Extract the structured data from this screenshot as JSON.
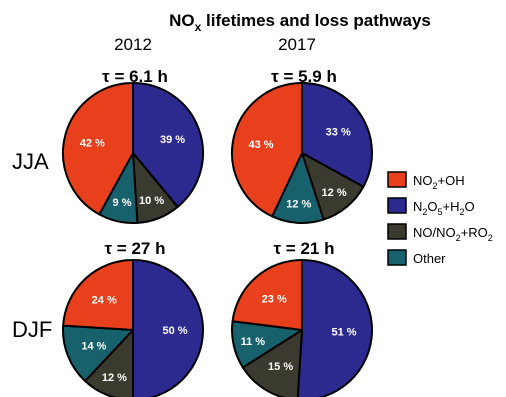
{
  "chart_data": {
    "type": "pie",
    "title": "NOx lifetimes and loss pathways",
    "title_main": "NO",
    "title_sub": "x",
    "title_rest": " lifetimes and loss pathways",
    "years": [
      "2012",
      "2017"
    ],
    "seasons": [
      "JJA",
      "DJF"
    ],
    "categories": [
      "NO2+OH",
      "N2O5+H2O",
      "NO/NO2+RO2",
      "Other"
    ],
    "colors": {
      "NO2+OH": "#e8401c",
      "N2O5+H2O": "#2c2a8f",
      "NO/NO2+RO2": "#3a3a2e",
      "Other": "#17616c"
    },
    "legend": {
      "placement": "right",
      "entries": [
        {
          "key": "NO2+OH",
          "parts": [
            [
              "NO",
              ""
            ],
            [
              "2",
              "sub"
            ],
            [
              "+OH",
              ""
            ]
          ]
        },
        {
          "key": "N2O5+H2O",
          "parts": [
            [
              "N",
              ""
            ],
            [
              "2",
              "sub"
            ],
            [
              "O",
              ""
            ],
            [
              "5",
              "sub"
            ],
            [
              "+H",
              ""
            ],
            [
              "2",
              "sub"
            ],
            [
              "O",
              ""
            ]
          ]
        },
        {
          "key": "NO/NO2+RO2",
          "parts": [
            [
              "NO/NO",
              ""
            ],
            [
              "2",
              "sub"
            ],
            [
              "+RO",
              ""
            ],
            [
              "2",
              "sub"
            ]
          ]
        },
        {
          "key": "Other",
          "parts": [
            [
              "Other",
              ""
            ]
          ]
        }
      ]
    },
    "pies": [
      {
        "season": "JJA",
        "year": "2012",
        "tau": "τ = 6.1 h",
        "slices": [
          {
            "key": "N2O5+H2O",
            "value": 39,
            "label": "39 %"
          },
          {
            "key": "NO/NO2+RO2",
            "value": 10,
            "label": "10 %"
          },
          {
            "key": "Other",
            "value": 9,
            "label": "9 %"
          },
          {
            "key": "NO2+OH",
            "value": 42,
            "label": "42 %"
          }
        ]
      },
      {
        "season": "JJA",
        "year": "2017",
        "tau": "τ = 5.9 h",
        "slices": [
          {
            "key": "N2O5+H2O",
            "value": 33,
            "label": "33 %"
          },
          {
            "key": "NO/NO2+RO2",
            "value": 12,
            "label": "12 %"
          },
          {
            "key": "Other",
            "value": 12,
            "label": "12 %"
          },
          {
            "key": "NO2+OH",
            "value": 43,
            "label": "43 %"
          }
        ]
      },
      {
        "season": "DJF",
        "year": "2012",
        "tau": "τ = 27 h",
        "slices": [
          {
            "key": "N2O5+H2O",
            "value": 50,
            "label": "50 %"
          },
          {
            "key": "NO/NO2+RO2",
            "value": 12,
            "label": "12 %"
          },
          {
            "key": "Other",
            "value": 14,
            "label": "14 %"
          },
          {
            "key": "NO2+OH",
            "value": 24,
            "label": "24 %"
          }
        ]
      },
      {
        "season": "DJF",
        "year": "2017",
        "tau": "τ = 21 h",
        "slices": [
          {
            "key": "N2O5+H2O",
            "value": 51,
            "label": "51 %"
          },
          {
            "key": "NO/NO2+RO2",
            "value": 15,
            "label": "15 %"
          },
          {
            "key": "Other",
            "value": 11,
            "label": "11 %"
          },
          {
            "key": "NO2+OH",
            "value": 23,
            "label": "23 %"
          }
        ]
      }
    ]
  }
}
